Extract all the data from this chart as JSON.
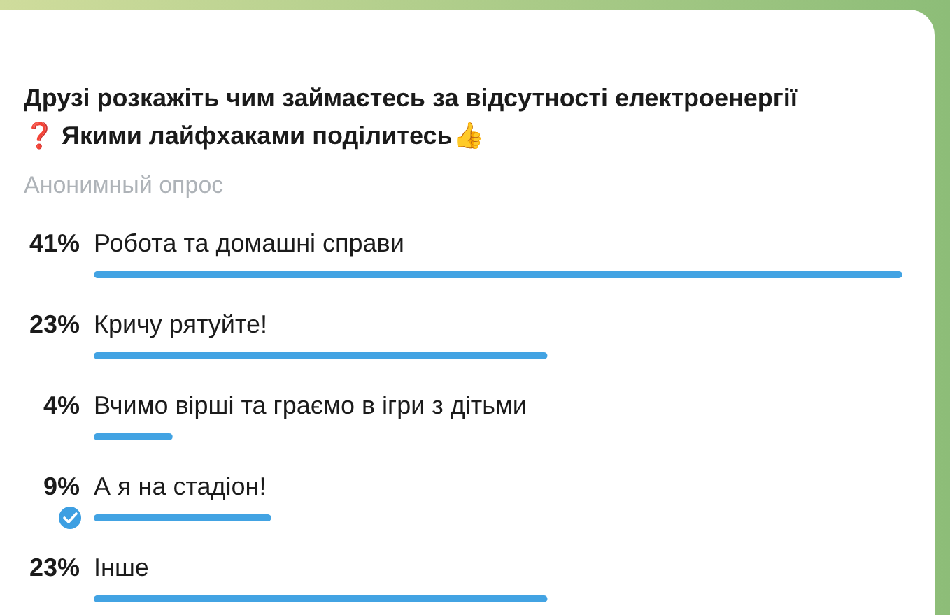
{
  "chart_data": {
    "type": "bar",
    "orientation": "horizontal",
    "title": "Друзі розкажіть чим займаєтесь за відсутності електроенергії ❓ Якими лайфхаками поділитесь👍",
    "subtitle": "Анонимный опрос",
    "categories": [
      "Робота та домашні справи",
      "Кричу рятуйте!",
      "Вчимо вірші та граємо в ігри з дітьми",
      "А я на стадіон!",
      "Інше"
    ],
    "values": [
      41,
      23,
      4,
      9,
      23
    ],
    "value_labels": [
      "41%",
      "23%",
      "4%",
      "9%",
      "23%"
    ],
    "color": "#42a3e3"
  }
}
